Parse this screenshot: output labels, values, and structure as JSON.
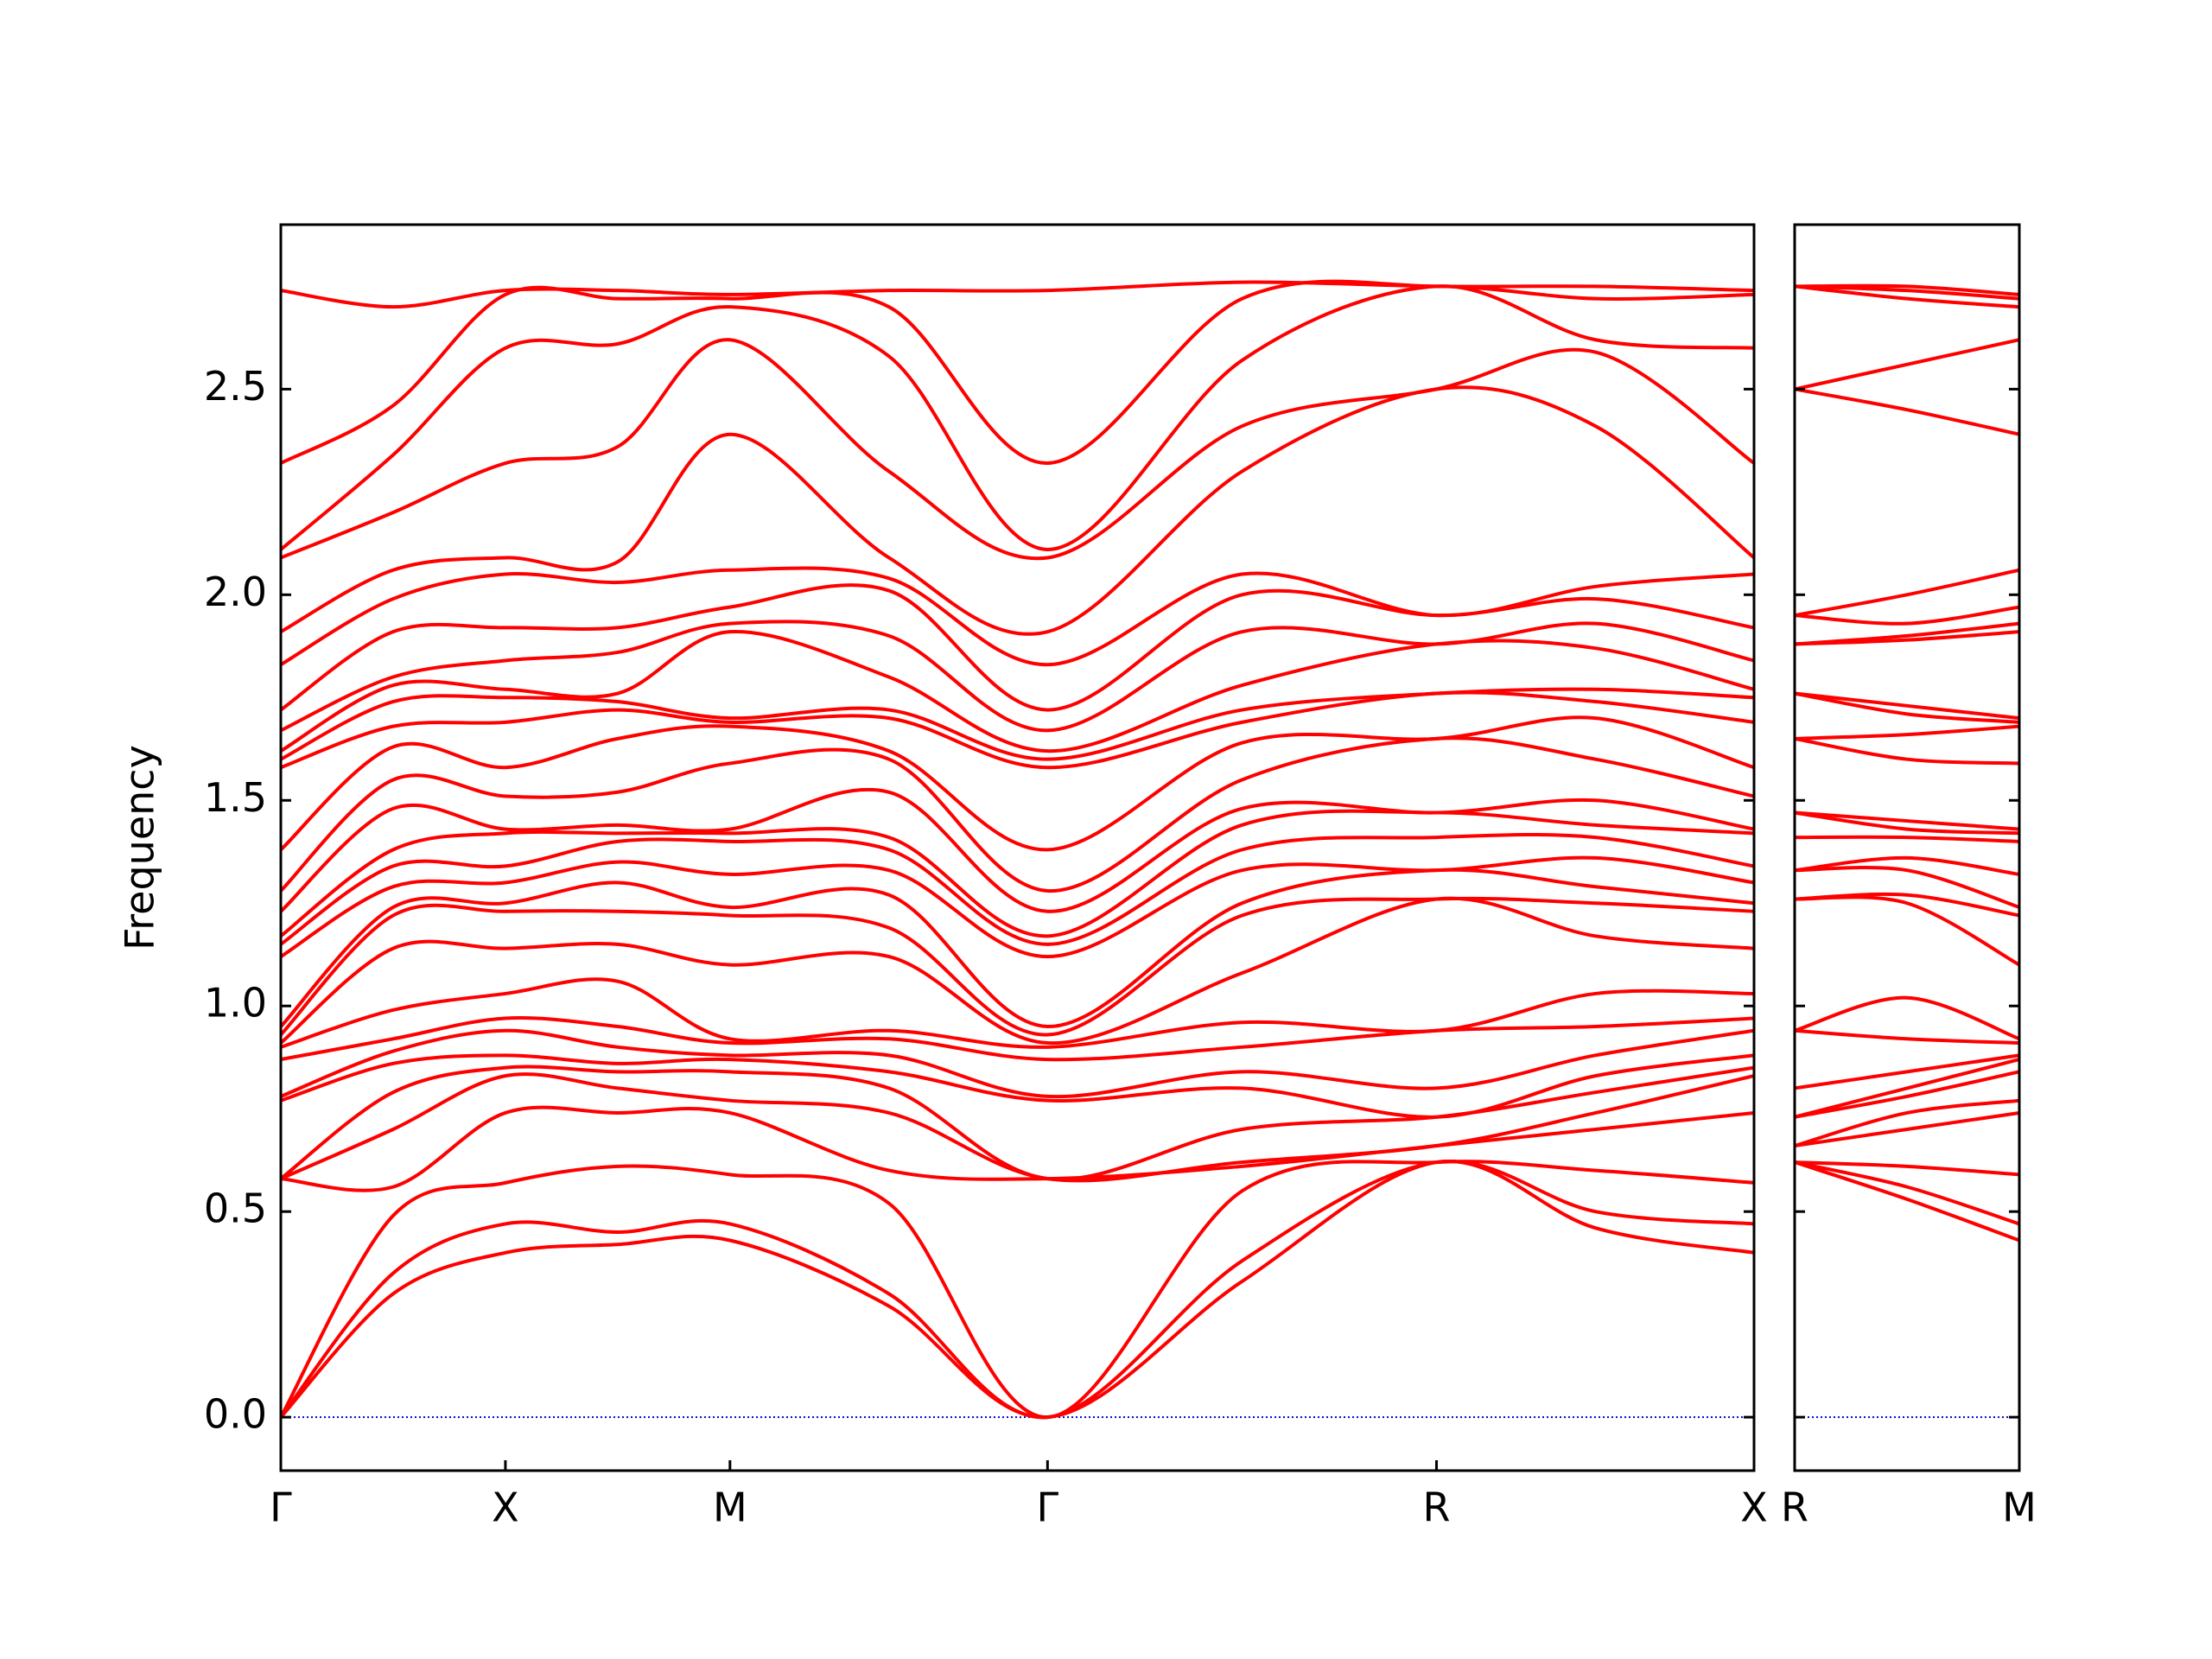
{
  "chart_data": [
    {
      "type": "line",
      "ylabel": "Frequency",
      "color": "#ff0000",
      "x": [
        0,
        0.25,
        0.5,
        0.75,
        1.0,
        1.354,
        1.707,
        2.14,
        2.573,
        2.927,
        3.28
      ],
      "xlim": [
        0,
        3.28
      ],
      "xticks": [
        {
          "value": 0,
          "label": "Γ"
        },
        {
          "value": 0.5,
          "label": "X"
        },
        {
          "value": 1.0,
          "label": "M"
        },
        {
          "value": 1.707,
          "label": "Γ"
        },
        {
          "value": 2.573,
          "label": "R"
        },
        {
          "value": 3.28,
          "label": "X"
        }
      ],
      "ylim": [
        -0.13,
        2.9
      ],
      "yticks": [
        {
          "value": 0,
          "label": "0.0"
        },
        {
          "value": 0.5,
          "label": "0.5"
        },
        {
          "value": 1.0,
          "label": "1.0"
        },
        {
          "value": 1.5,
          "label": "1.5"
        },
        {
          "value": 2.0,
          "label": "2.0"
        },
        {
          "value": 2.5,
          "label": "2.5"
        }
      ],
      "show_ytick_labels": true,
      "zero_line": {
        "y": 0,
        "color": "#0000cd"
      },
      "series": [
        {
          "values": [
            0,
            0.3,
            0.4,
            0.42,
            0.43,
            0.27,
            0,
            0.33,
            0.62,
            0.46,
            0.4
          ]
        },
        {
          "values": [
            0,
            0.35,
            0.47,
            0.45,
            0.47,
            0.3,
            0,
            0.38,
            0.62,
            0.5,
            0.47
          ]
        },
        {
          "values": [
            0,
            0.49,
            0.57,
            0.61,
            0.59,
            0.52,
            0,
            0.55,
            0.62,
            0.6,
            0.57
          ]
        },
        {
          "values": [
            0.58,
            0.56,
            0.74,
            0.74,
            0.74,
            0.6,
            0.58,
            0.61,
            0.66,
            0.7,
            0.74
          ]
        },
        {
          "values": [
            0.58,
            0.7,
            0.83,
            0.8,
            0.77,
            0.74,
            0.58,
            0.62,
            0.66,
            0.74,
            0.83
          ]
        },
        {
          "values": [
            0.58,
            0.79,
            0.85,
            0.84,
            0.84,
            0.8,
            0.58,
            0.7,
            0.73,
            0.79,
            0.85
          ]
        },
        {
          "values": [
            0.77,
            0.86,
            0.88,
            0.86,
            0.87,
            0.84,
            0.77,
            0.8,
            0.73,
            0.83,
            0.88
          ]
        },
        {
          "values": [
            0.78,
            0.89,
            0.94,
            0.9,
            0.88,
            0.88,
            0.78,
            0.84,
            0.8,
            0.88,
            0.94
          ]
        },
        {
          "values": [
            0.87,
            0.92,
            0.97,
            0.95,
            0.91,
            0.92,
            0.87,
            0.9,
            0.94,
            0.95,
            0.97
          ]
        },
        {
          "values": [
            0.9,
            0.99,
            1.03,
            1.06,
            0.92,
            0.94,
            0.9,
            0.96,
            0.94,
            1.03,
            1.03
          ]
        },
        {
          "values": [
            0.91,
            1.14,
            1.14,
            1.15,
            1.1,
            1.12,
            0.91,
            1.08,
            1.26,
            1.17,
            1.14
          ]
        },
        {
          "values": [
            0.93,
            1.22,
            1.23,
            1.23,
            1.22,
            1.19,
            0.93,
            1.22,
            1.26,
            1.25,
            1.23
          ]
        },
        {
          "values": [
            0.95,
            1.24,
            1.25,
            1.3,
            1.24,
            1.27,
            0.95,
            1.25,
            1.33,
            1.29,
            1.25
          ]
        },
        {
          "values": [
            1.12,
            1.29,
            1.3,
            1.35,
            1.32,
            1.33,
            1.12,
            1.33,
            1.33,
            1.36,
            1.3
          ]
        },
        {
          "values": [
            1.15,
            1.34,
            1.34,
            1.4,
            1.4,
            1.38,
            1.15,
            1.38,
            1.41,
            1.41,
            1.34
          ]
        },
        {
          "values": [
            1.17,
            1.38,
            1.42,
            1.42,
            1.42,
            1.41,
            1.17,
            1.44,
            1.47,
            1.44,
            1.42
          ]
        },
        {
          "values": [
            1.23,
            1.48,
            1.43,
            1.44,
            1.43,
            1.52,
            1.23,
            1.48,
            1.47,
            1.5,
            1.43
          ]
        },
        {
          "values": [
            1.28,
            1.55,
            1.51,
            1.52,
            1.59,
            1.6,
            1.28,
            1.55,
            1.65,
            1.6,
            1.51
          ]
        },
        {
          "values": [
            1.38,
            1.63,
            1.58,
            1.65,
            1.68,
            1.62,
            1.38,
            1.64,
            1.65,
            1.7,
            1.58
          ]
        },
        {
          "values": [
            1.58,
            1.68,
            1.69,
            1.72,
            1.69,
            1.7,
            1.58,
            1.69,
            1.76,
            1.74,
            1.69
          ]
        },
        {
          "values": [
            1.6,
            1.74,
            1.75,
            1.74,
            1.7,
            1.72,
            1.6,
            1.72,
            1.76,
            1.77,
            1.75
          ]
        },
        {
          "values": [
            1.62,
            1.78,
            1.77,
            1.76,
            1.91,
            1.8,
            1.62,
            1.78,
            1.88,
            1.87,
            1.77
          ]
        },
        {
          "values": [
            1.67,
            1.8,
            1.84,
            1.86,
            1.93,
            1.9,
            1.67,
            1.91,
            1.88,
            1.93,
            1.84
          ]
        },
        {
          "values": [
            1.72,
            1.91,
            1.92,
            1.92,
            1.97,
            2.01,
            1.72,
            2.0,
            1.95,
            1.99,
            1.92
          ]
        },
        {
          "values": [
            1.83,
            1.99,
            2.05,
            2.03,
            2.06,
            2.04,
            1.83,
            2.05,
            1.95,
            2.02,
            2.05
          ]
        },
        {
          "values": [
            1.91,
            2.06,
            2.09,
            2.08,
            2.39,
            2.09,
            1.91,
            2.3,
            2.5,
            2.41,
            2.09
          ]
        },
        {
          "values": [
            2.09,
            2.2,
            2.32,
            2.36,
            2.62,
            2.3,
            2.09,
            2.41,
            2.5,
            2.59,
            2.32
          ]
        },
        {
          "values": [
            2.11,
            2.34,
            2.6,
            2.61,
            2.7,
            2.58,
            2.11,
            2.57,
            2.75,
            2.62,
            2.6
          ]
        },
        {
          "values": [
            2.32,
            2.46,
            2.73,
            2.72,
            2.72,
            2.7,
            2.32,
            2.72,
            2.75,
            2.72,
            2.73
          ]
        },
        {
          "values": [
            2.74,
            2.7,
            2.74,
            2.74,
            2.73,
            2.74,
            2.74,
            2.76,
            2.75,
            2.75,
            2.74
          ]
        }
      ]
    },
    {
      "type": "line",
      "color": "#ff0000",
      "x": [
        0,
        0.25,
        0.5
      ],
      "xlim": [
        0,
        0.5
      ],
      "xticks": [
        {
          "value": 0,
          "label": "R"
        },
        {
          "value": 0.5,
          "label": "M"
        }
      ],
      "ylim": [
        -0.13,
        2.9
      ],
      "yticks": [
        0,
        0.5,
        1,
        1.5,
        2,
        2.5
      ],
      "show_ytick_labels": false,
      "zero_line": {
        "y": 0,
        "color": "#0000cd"
      },
      "series": [
        {
          "values": [
            0.62,
            0.53,
            0.43
          ]
        },
        {
          "values": [
            0.62,
            0.56,
            0.47
          ]
        },
        {
          "values": [
            0.62,
            0.61,
            0.59
          ]
        },
        {
          "values": [
            0.66,
            0.7,
            0.74
          ]
        },
        {
          "values": [
            0.66,
            0.74,
            0.77
          ]
        },
        {
          "values": [
            0.73,
            0.78,
            0.84
          ]
        },
        {
          "values": [
            0.73,
            0.8,
            0.87
          ]
        },
        {
          "values": [
            0.8,
            0.84,
            0.88
          ]
        },
        {
          "values": [
            0.94,
            0.92,
            0.91
          ]
        },
        {
          "values": [
            0.94,
            1.02,
            0.92
          ]
        },
        {
          "values": [
            1.26,
            1.25,
            1.1
          ]
        },
        {
          "values": [
            1.26,
            1.27,
            1.22
          ]
        },
        {
          "values": [
            1.33,
            1.33,
            1.24
          ]
        },
        {
          "values": [
            1.33,
            1.36,
            1.32
          ]
        },
        {
          "values": [
            1.41,
            1.41,
            1.4
          ]
        },
        {
          "values": [
            1.47,
            1.43,
            1.42
          ]
        },
        {
          "values": [
            1.47,
            1.45,
            1.43
          ]
        },
        {
          "values": [
            1.65,
            1.6,
            1.59
          ]
        },
        {
          "values": [
            1.65,
            1.66,
            1.68
          ]
        },
        {
          "values": [
            1.76,
            1.71,
            1.69
          ]
        },
        {
          "values": [
            1.76,
            1.73,
            1.7
          ]
        },
        {
          "values": [
            1.88,
            1.89,
            1.91
          ]
        },
        {
          "values": [
            1.88,
            1.9,
            1.93
          ]
        },
        {
          "values": [
            1.95,
            1.93,
            1.97
          ]
        },
        {
          "values": [
            1.95,
            2.0,
            2.06
          ]
        },
        {
          "values": [
            2.5,
            2.45,
            2.39
          ]
        },
        {
          "values": [
            2.5,
            2.56,
            2.62
          ]
        },
        {
          "values": [
            2.75,
            2.72,
            2.7
          ]
        },
        {
          "values": [
            2.75,
            2.74,
            2.72
          ]
        },
        {
          "values": [
            2.75,
            2.75,
            2.73
          ]
        }
      ]
    }
  ]
}
